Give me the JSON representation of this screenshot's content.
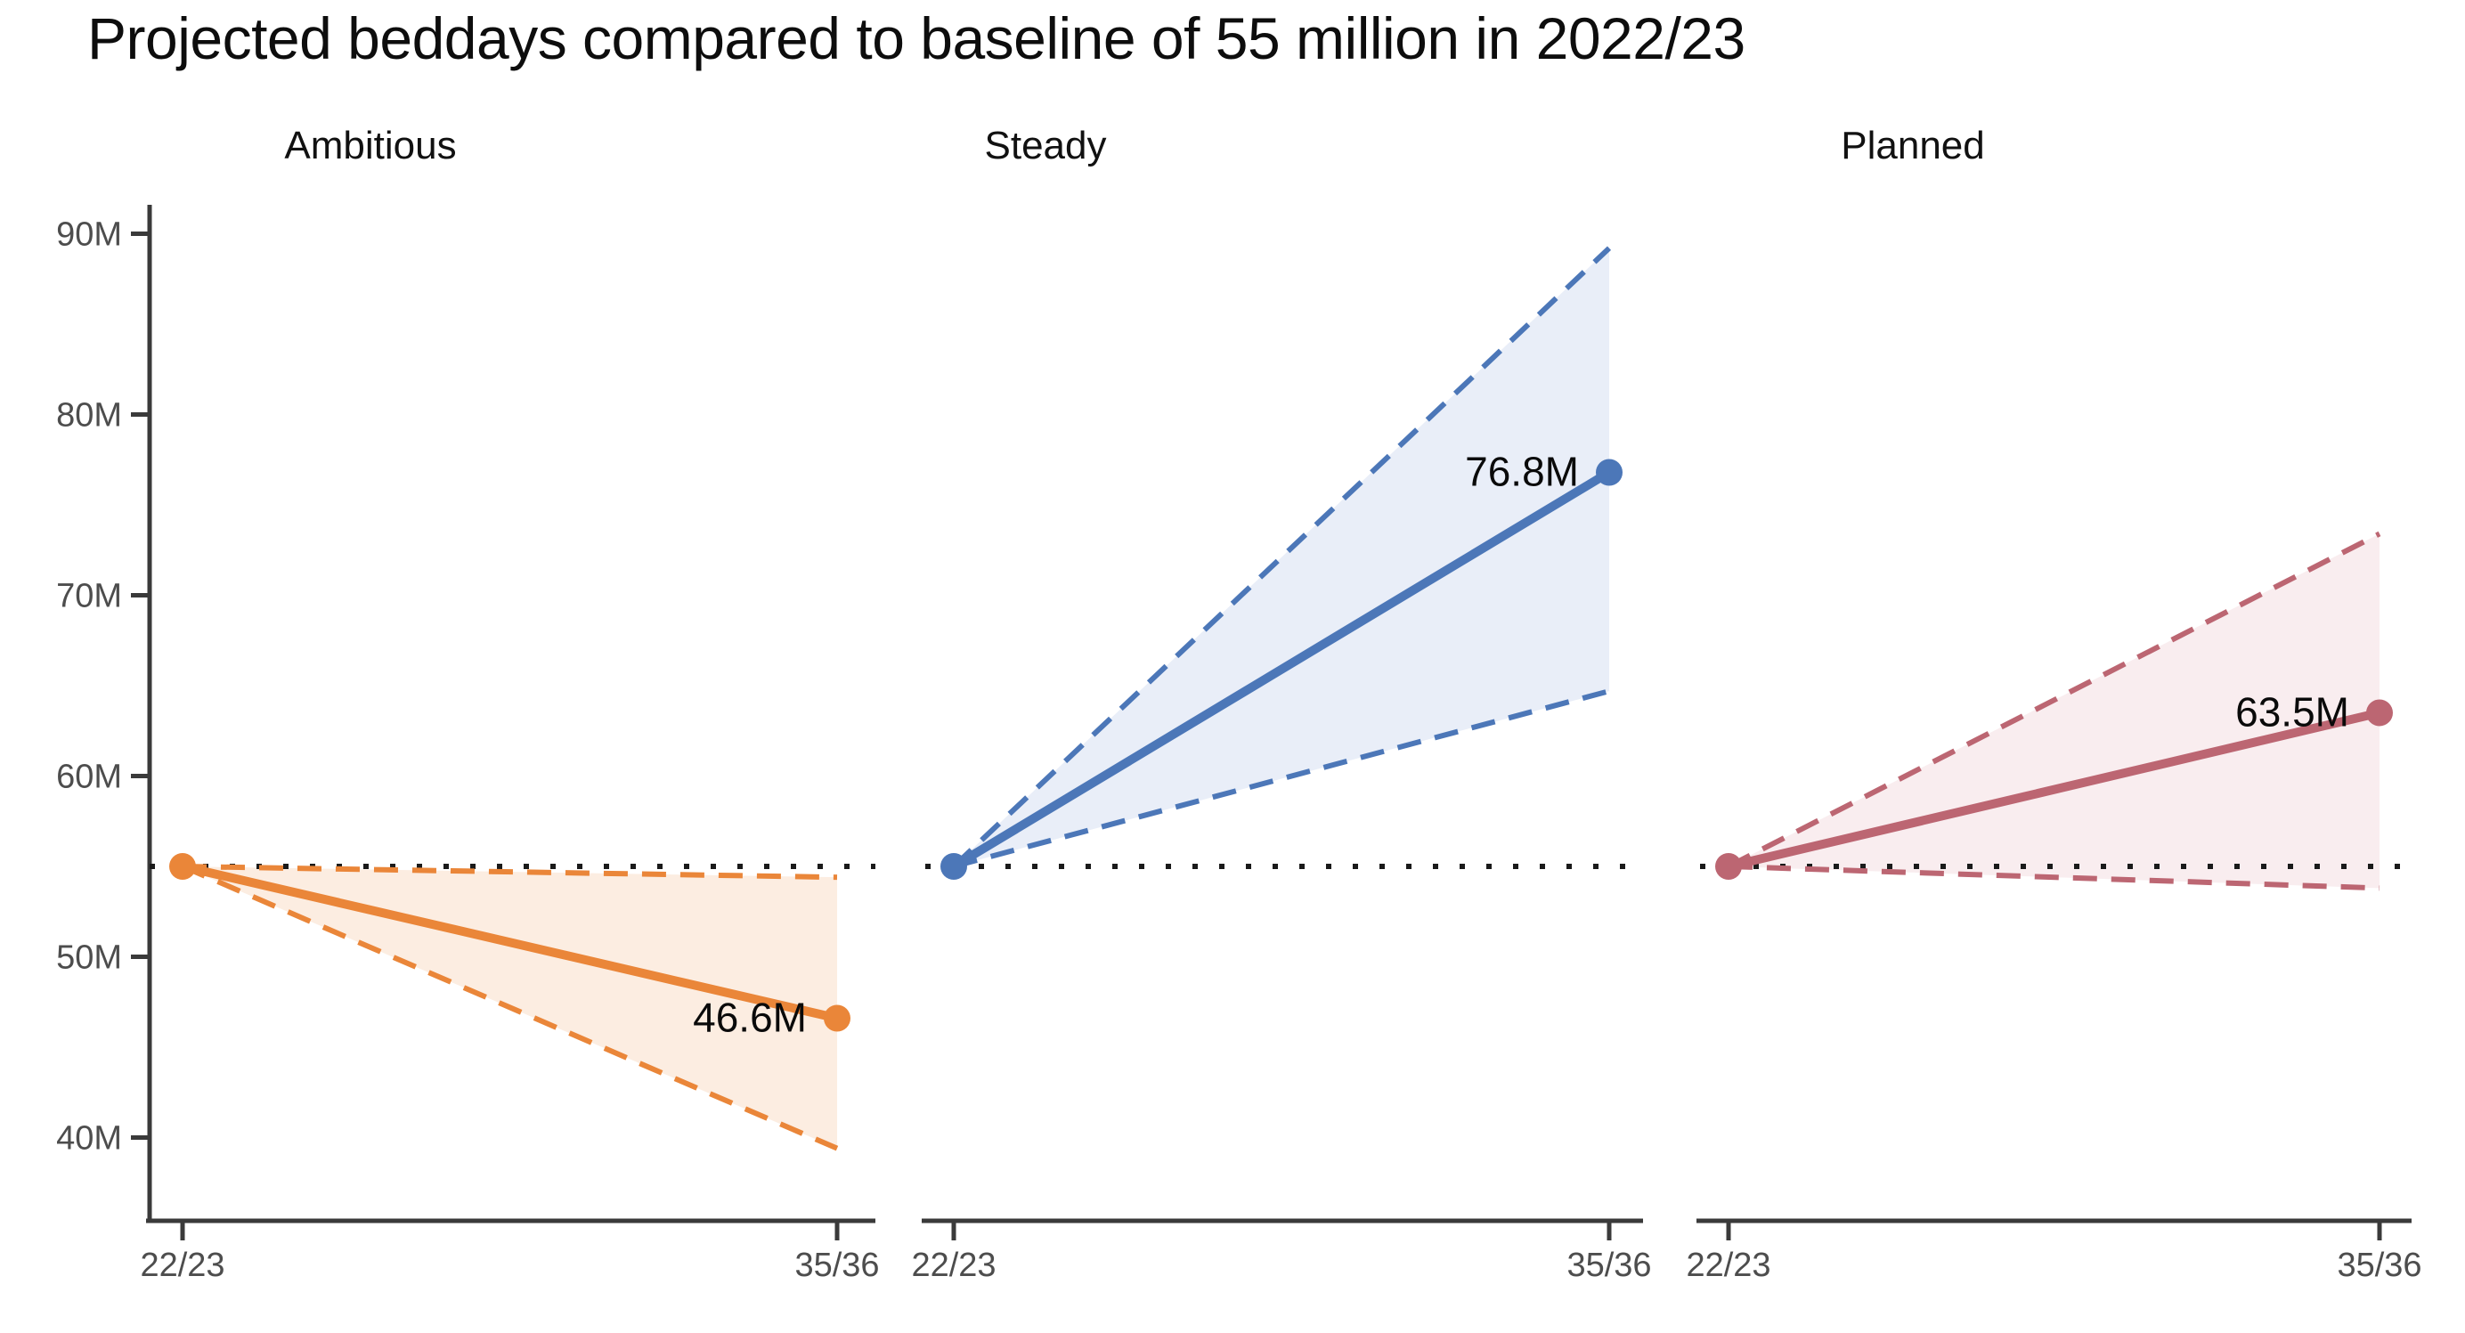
{
  "chart_data": {
    "type": "line",
    "title": "Projected beddays compared to baseline of 55 million in 2022/23",
    "x_categories": [
      "22/23",
      "35/36"
    ],
    "xlabel": "",
    "ylabel": "",
    "y_range": [
      37,
      93
    ],
    "y_ticks": [
      {
        "value": 40,
        "label": "40M"
      },
      {
        "value": 50,
        "label": "50M"
      },
      {
        "value": 60,
        "label": "60M"
      },
      {
        "value": 70,
        "label": "70M"
      },
      {
        "value": 80,
        "label": "80M"
      },
      {
        "value": 90,
        "label": "90M"
      }
    ],
    "grid": false,
    "baseline": {
      "value": 55,
      "style": "dotted",
      "color": "#1a1a1a"
    },
    "panels": [
      {
        "name": "Ambitious",
        "color": "#EA8639",
        "fill": "#FCEDE1",
        "series": {
          "central": {
            "x": [
              "22/23",
              "35/36"
            ],
            "values": [
              55,
              46.6
            ]
          },
          "upper_bound": {
            "x": [
              "22/23",
              "35/36"
            ],
            "values": [
              55,
              54.4
            ]
          },
          "lower_bound": {
            "x": [
              "22/23",
              "35/36"
            ],
            "values": [
              55,
              39.4
            ]
          }
        },
        "end_label": "46.6M"
      },
      {
        "name": "Steady",
        "color": "#4C77B8",
        "fill": "#E9EEF8",
        "series": {
          "central": {
            "x": [
              "22/23",
              "35/36"
            ],
            "values": [
              55,
              76.8
            ]
          },
          "upper_bound": {
            "x": [
              "22/23",
              "35/36"
            ],
            "values": [
              55,
              89.2
            ]
          },
          "lower_bound": {
            "x": [
              "22/23",
              "35/36"
            ],
            "values": [
              55,
              64.7
            ]
          }
        },
        "end_label": "76.8M"
      },
      {
        "name": "Planned",
        "color": "#BC6672",
        "fill": "#F9EDEF",
        "series": {
          "central": {
            "x": [
              "22/23",
              "35/36"
            ],
            "values": [
              55,
              63.5
            ]
          },
          "upper_bound": {
            "x": [
              "22/23",
              "35/36"
            ],
            "values": [
              55,
              73.4
            ]
          },
          "lower_bound": {
            "x": [
              "22/23",
              "35/36"
            ],
            "values": [
              55,
              53.8
            ]
          }
        },
        "end_label": "63.5M"
      }
    ]
  }
}
